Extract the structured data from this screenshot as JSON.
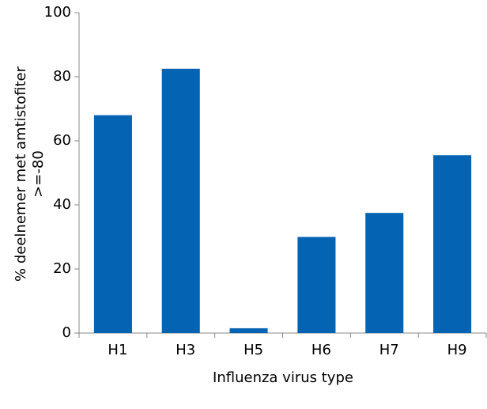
{
  "chart_data": {
    "type": "bar",
    "categories": [
      "H1",
      "H3",
      "H5",
      "H6",
      "H7",
      "H9"
    ],
    "values": [
      68,
      82.5,
      1.5,
      30,
      37.5,
      55.5
    ],
    "color": "#0563b4",
    "ylim": [
      0,
      100
    ],
    "yticks": [
      0,
      20,
      40,
      60,
      80,
      100
    ],
    "grid": false,
    "xlabel": "Influenza virus type",
    "ylabel": [
      "% deelnemer met amtistofiter",
      ">=-80"
    ]
  }
}
